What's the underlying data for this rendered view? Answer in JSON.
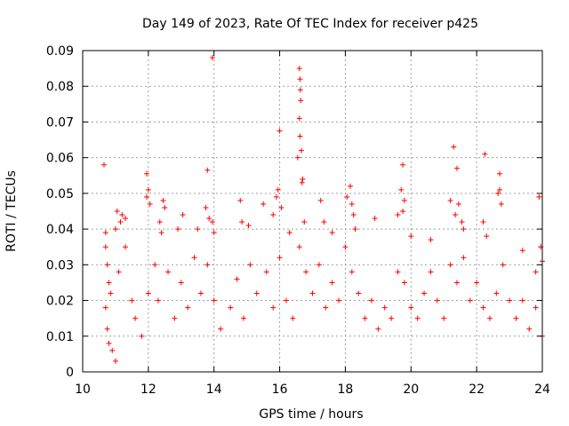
{
  "chart_data": {
    "type": "scatter",
    "title": "Day 149 of 2023, Rate Of TEC Index for receiver p425",
    "xlabel": "GPS time / hours",
    "ylabel": "ROTI / TECUs",
    "xlim": [
      10,
      24
    ],
    "ylim": [
      0,
      0.09
    ],
    "x_ticks": [
      "10",
      "12",
      "14",
      "16",
      "18",
      "20",
      "22",
      "24"
    ],
    "y_ticks": [
      "0",
      "0.01",
      "0.02",
      "0.03",
      "0.04",
      "0.05",
      "0.06",
      "0.07",
      "0.08",
      "0.09"
    ],
    "grid": true,
    "marker": "+",
    "color": "#ff0000",
    "series": [
      {
        "points": [
          [
            10.65,
            0.058
          ],
          [
            13.95,
            0.088
          ],
          [
            16.0,
            0.0675
          ],
          [
            16.6,
            0.085
          ],
          [
            16.62,
            0.082
          ],
          [
            16.63,
            0.079
          ],
          [
            16.64,
            0.076
          ],
          [
            16.6,
            0.071
          ],
          [
            16.62,
            0.066
          ],
          [
            16.55,
            0.06
          ],
          [
            16.66,
            0.062
          ],
          [
            16.7,
            0.054
          ],
          [
            16.68,
            0.053
          ],
          [
            21.3,
            0.063
          ],
          [
            22.25,
            0.061
          ],
          [
            21.4,
            0.057
          ],
          [
            19.75,
            0.058
          ],
          [
            13.8,
            0.0565
          ],
          [
            22.7,
            0.0555
          ],
          [
            11.95,
            0.0555
          ],
          [
            22.65,
            0.05
          ],
          [
            22.7,
            0.051
          ],
          [
            18.15,
            0.052
          ],
          [
            19.7,
            0.051
          ],
          [
            15.95,
            0.051
          ],
          [
            11.0,
            0.04
          ],
          [
            11.05,
            0.045
          ],
          [
            10.7,
            0.039
          ],
          [
            11.15,
            0.042
          ],
          [
            11.2,
            0.044
          ],
          [
            11.3,
            0.043
          ],
          [
            12.0,
            0.051
          ],
          [
            11.95,
            0.049
          ],
          [
            12.05,
            0.047
          ],
          [
            12.45,
            0.048
          ],
          [
            12.5,
            0.046
          ],
          [
            12.35,
            0.042
          ],
          [
            12.4,
            0.039
          ],
          [
            12.9,
            0.04
          ],
          [
            13.05,
            0.044
          ],
          [
            13.5,
            0.04
          ],
          [
            13.75,
            0.046
          ],
          [
            13.85,
            0.043
          ],
          [
            13.95,
            0.042
          ],
          [
            14.0,
            0.039
          ],
          [
            14.8,
            0.048
          ],
          [
            14.85,
            0.042
          ],
          [
            15.05,
            0.041
          ],
          [
            15.5,
            0.047
          ],
          [
            15.8,
            0.044
          ],
          [
            15.9,
            0.049
          ],
          [
            16.05,
            0.046
          ],
          [
            16.3,
            0.039
          ],
          [
            16.75,
            0.042
          ],
          [
            17.25,
            0.048
          ],
          [
            17.35,
            0.042
          ],
          [
            17.6,
            0.039
          ],
          [
            18.05,
            0.049
          ],
          [
            18.2,
            0.047
          ],
          [
            18.25,
            0.044
          ],
          [
            18.3,
            0.04
          ],
          [
            18.9,
            0.043
          ],
          [
            19.6,
            0.044
          ],
          [
            19.75,
            0.045
          ],
          [
            19.8,
            0.048
          ],
          [
            20.0,
            0.038
          ],
          [
            20.6,
            0.037
          ],
          [
            21.2,
            0.048
          ],
          [
            21.35,
            0.044
          ],
          [
            21.45,
            0.047
          ],
          [
            21.55,
            0.042
          ],
          [
            21.6,
            0.04
          ],
          [
            22.2,
            0.042
          ],
          [
            22.3,
            0.038
          ],
          [
            22.75,
            0.047
          ],
          [
            23.4,
            0.034
          ],
          [
            23.9,
            0.049
          ],
          [
            23.95,
            0.035
          ],
          [
            24.0,
            0.031
          ],
          [
            23.8,
            0.028
          ],
          [
            10.7,
            0.035
          ],
          [
            10.75,
            0.03
          ],
          [
            10.8,
            0.025
          ],
          [
            10.85,
            0.022
          ],
          [
            10.7,
            0.018
          ],
          [
            10.75,
            0.012
          ],
          [
            10.8,
            0.008
          ],
          [
            10.9,
            0.006
          ],
          [
            11.0,
            0.003
          ],
          [
            11.1,
            0.028
          ],
          [
            11.3,
            0.035
          ],
          [
            11.5,
            0.02
          ],
          [
            11.6,
            0.015
          ],
          [
            11.8,
            0.01
          ],
          [
            12.0,
            0.022
          ],
          [
            12.2,
            0.03
          ],
          [
            12.3,
            0.02
          ],
          [
            12.6,
            0.028
          ],
          [
            12.8,
            0.015
          ],
          [
            13.0,
            0.025
          ],
          [
            13.2,
            0.018
          ],
          [
            13.4,
            0.032
          ],
          [
            13.6,
            0.022
          ],
          [
            13.8,
            0.03
          ],
          [
            14.0,
            0.02
          ],
          [
            14.2,
            0.012
          ],
          [
            14.5,
            0.018
          ],
          [
            14.7,
            0.026
          ],
          [
            14.9,
            0.015
          ],
          [
            15.1,
            0.03
          ],
          [
            15.3,
            0.022
          ],
          [
            15.6,
            0.028
          ],
          [
            15.8,
            0.018
          ],
          [
            16.0,
            0.032
          ],
          [
            16.2,
            0.02
          ],
          [
            16.4,
            0.015
          ],
          [
            16.6,
            0.035
          ],
          [
            16.8,
            0.028
          ],
          [
            17.0,
            0.022
          ],
          [
            17.2,
            0.03
          ],
          [
            17.4,
            0.018
          ],
          [
            17.6,
            0.025
          ],
          [
            17.8,
            0.02
          ],
          [
            18.0,
            0.035
          ],
          [
            18.2,
            0.028
          ],
          [
            18.4,
            0.022
          ],
          [
            18.6,
            0.015
          ],
          [
            18.8,
            0.02
          ],
          [
            19.0,
            0.012
          ],
          [
            19.2,
            0.018
          ],
          [
            19.4,
            0.015
          ],
          [
            19.6,
            0.028
          ],
          [
            19.8,
            0.025
          ],
          [
            20.0,
            0.018
          ],
          [
            20.2,
            0.015
          ],
          [
            20.4,
            0.022
          ],
          [
            20.6,
            0.028
          ],
          [
            20.8,
            0.02
          ],
          [
            21.0,
            0.015
          ],
          [
            21.2,
            0.03
          ],
          [
            21.4,
            0.025
          ],
          [
            21.6,
            0.032
          ],
          [
            21.8,
            0.02
          ],
          [
            22.0,
            0.025
          ],
          [
            22.2,
            0.018
          ],
          [
            22.4,
            0.015
          ],
          [
            22.6,
            0.022
          ],
          [
            22.8,
            0.03
          ],
          [
            23.0,
            0.02
          ],
          [
            23.2,
            0.015
          ],
          [
            23.4,
            0.02
          ],
          [
            23.6,
            0.012
          ],
          [
            23.8,
            0.018
          ],
          [
            24.0,
            0.01
          ]
        ]
      }
    ]
  }
}
